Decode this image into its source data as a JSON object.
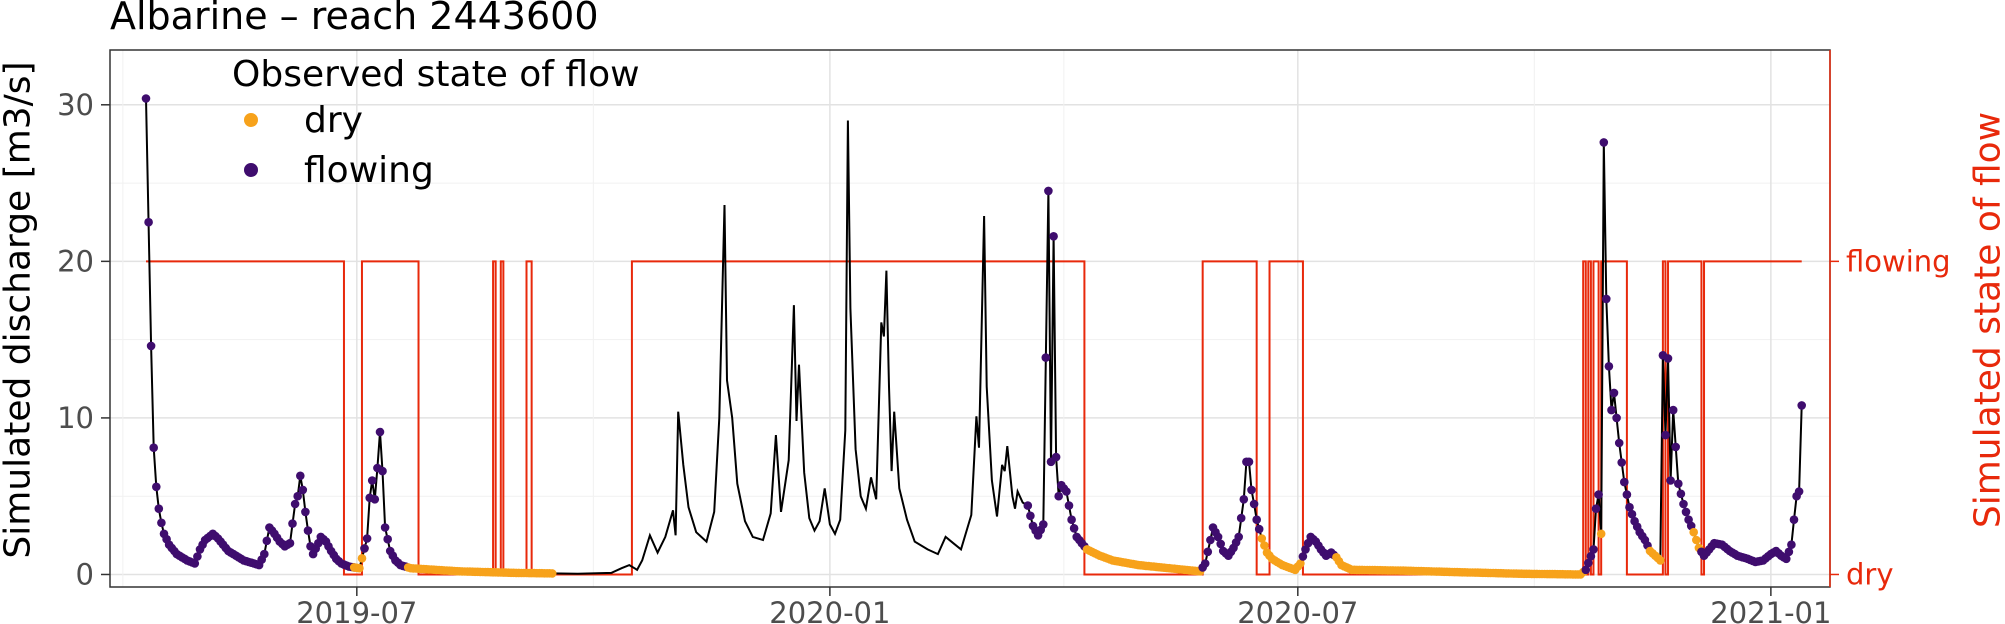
{
  "chart_data": {
    "type": "line",
    "title": "Albarine – reach 2443600",
    "ylabel": "Simulated discharge [m3/s]",
    "ylabel_right": "Simulated state of flow",
    "ylim": [
      -0.8,
      33.5
    ],
    "yticks": [
      0,
      10,
      20,
      30
    ],
    "xlim": [
      "2019-03-27",
      "2021-01-24"
    ],
    "xticks": [
      {
        "date": "2019-07-01",
        "label": "2019-07"
      },
      {
        "date": "2020-01-01",
        "label": "2020-01"
      },
      {
        "date": "2020-07-01",
        "label": "2020-07"
      },
      {
        "date": "2021-01-01",
        "label": "2021-01"
      }
    ],
    "right_axis_ticks": [
      {
        "label": "flowing",
        "value": 20
      },
      {
        "label": "dry",
        "value": 0
      }
    ],
    "grid": true,
    "legend": {
      "title": "Observed state of flow",
      "position": "top-left",
      "items": [
        {
          "label": "dry",
          "color": "#f7a21b"
        },
        {
          "label": "flowing",
          "color": "#3f0d6e"
        }
      ]
    },
    "colors": {
      "discharge_line": "#000000",
      "state_line": "#e8290b",
      "dry": "#f7a21b",
      "flowing": "#3f0d6e"
    },
    "discharge": [
      [
        "2019-04-10",
        30.4
      ],
      [
        "2019-04-12",
        14.6
      ],
      [
        "2019-04-13",
        8.1
      ],
      [
        "2019-04-14",
        5.6
      ],
      [
        "2019-04-15",
        4.2
      ],
      [
        "2019-04-16",
        3.3
      ],
      [
        "2019-04-17",
        2.6
      ],
      [
        "2019-04-19",
        1.9
      ],
      [
        "2019-04-22",
        1.3
      ],
      [
        "2019-04-26",
        0.9
      ],
      [
        "2019-04-29",
        0.7
      ],
      [
        "2019-05-01",
        1.6
      ],
      [
        "2019-05-03",
        2.2
      ],
      [
        "2019-05-06",
        2.6
      ],
      [
        "2019-05-08",
        2.3
      ],
      [
        "2019-05-12",
        1.5
      ],
      [
        "2019-05-18",
        0.9
      ],
      [
        "2019-05-24",
        0.6
      ],
      [
        "2019-05-26",
        1.3
      ],
      [
        "2019-05-28",
        3.0
      ],
      [
        "2019-05-30",
        2.6
      ],
      [
        "2019-06-01",
        2.1
      ],
      [
        "2019-06-03",
        1.8
      ],
      [
        "2019-06-05",
        2.0
      ],
      [
        "2019-06-07",
        4.5
      ],
      [
        "2019-06-08",
        5.0
      ],
      [
        "2019-06-09",
        6.3
      ],
      [
        "2019-06-10",
        5.4
      ],
      [
        "2019-06-11",
        4.0
      ],
      [
        "2019-06-12",
        2.8
      ],
      [
        "2019-06-13",
        1.8
      ],
      [
        "2019-06-14",
        1.3
      ],
      [
        "2019-06-16",
        2.0
      ],
      [
        "2019-06-17",
        2.4
      ],
      [
        "2019-06-19",
        2.1
      ],
      [
        "2019-06-21",
        1.5
      ],
      [
        "2019-06-23",
        1.0
      ],
      [
        "2019-06-25",
        0.7
      ],
      [
        "2019-06-28",
        0.5
      ],
      [
        "2019-07-02",
        0.4
      ],
      [
        "2019-07-05",
        2.3
      ],
      [
        "2019-07-06",
        4.9
      ],
      [
        "2019-07-07",
        6.0
      ],
      [
        "2019-07-08",
        4.8
      ],
      [
        "2019-07-09",
        6.8
      ],
      [
        "2019-07-10",
        9.1
      ],
      [
        "2019-07-11",
        6.6
      ],
      [
        "2019-07-12",
        3.0
      ],
      [
        "2019-07-14",
        1.5
      ],
      [
        "2019-07-16",
        0.9
      ],
      [
        "2019-07-18",
        0.6
      ],
      [
        "2019-07-22",
        0.4
      ],
      [
        "2019-08-10",
        0.2
      ],
      [
        "2019-09-01",
        0.1
      ],
      [
        "2019-09-25",
        0.05
      ],
      [
        "2019-10-08",
        0.1
      ],
      [
        "2019-10-12",
        0.4
      ],
      [
        "2019-10-15",
        0.6
      ],
      [
        "2019-10-18",
        0.3
      ],
      [
        "2019-10-20",
        0.9
      ],
      [
        "2019-10-23",
        2.5
      ],
      [
        "2019-10-26",
        1.4
      ],
      [
        "2019-10-29",
        2.4
      ],
      [
        "2019-11-01",
        4.1
      ],
      [
        "2019-11-02",
        2.5
      ],
      [
        "2019-11-03",
        10.4
      ],
      [
        "2019-11-05",
        7.0
      ],
      [
        "2019-11-07",
        4.3
      ],
      [
        "2019-11-10",
        2.7
      ],
      [
        "2019-11-14",
        2.1
      ],
      [
        "2019-11-17",
        4.0
      ],
      [
        "2019-11-19",
        10.0
      ],
      [
        "2019-11-21",
        23.6
      ],
      [
        "2019-11-22",
        12.4
      ],
      [
        "2019-11-24",
        10.0
      ],
      [
        "2019-11-26",
        5.8
      ],
      [
        "2019-11-29",
        3.4
      ],
      [
        "2019-12-02",
        2.4
      ],
      [
        "2019-12-06",
        2.2
      ],
      [
        "2019-12-09",
        3.9
      ],
      [
        "2019-12-11",
        8.9
      ],
      [
        "2019-12-13",
        4.0
      ],
      [
        "2019-12-16",
        7.3
      ],
      [
        "2019-12-18",
        17.2
      ],
      [
        "2019-12-19",
        9.8
      ],
      [
        "2019-12-20",
        13.4
      ],
      [
        "2019-12-22",
        6.5
      ],
      [
        "2019-12-24",
        3.6
      ],
      [
        "2019-12-26",
        2.8
      ],
      [
        "2019-12-28",
        3.4
      ],
      [
        "2019-12-30",
        5.5
      ],
      [
        "2020-01-01",
        3.2
      ],
      [
        "2020-01-03",
        2.6
      ],
      [
        "2020-01-05",
        3.5
      ],
      [
        "2020-01-07",
        9.2
      ],
      [
        "2020-01-08",
        29.0
      ],
      [
        "2020-01-09",
        17.0
      ],
      [
        "2020-01-11",
        8.0
      ],
      [
        "2020-01-13",
        5.0
      ],
      [
        "2020-01-15",
        4.2
      ],
      [
        "2020-01-17",
        6.2
      ],
      [
        "2020-01-19",
        4.8
      ],
      [
        "2020-01-21",
        16.1
      ],
      [
        "2020-01-22",
        15.2
      ],
      [
        "2020-01-23",
        19.4
      ],
      [
        "2020-01-24",
        12.0
      ],
      [
        "2020-01-25",
        6.6
      ],
      [
        "2020-01-26",
        10.4
      ],
      [
        "2020-01-28",
        5.5
      ],
      [
        "2020-01-31",
        3.5
      ],
      [
        "2020-02-03",
        2.1
      ],
      [
        "2020-02-08",
        1.6
      ],
      [
        "2020-02-12",
        1.3
      ],
      [
        "2020-02-15",
        2.4
      ],
      [
        "2020-02-18",
        2.0
      ],
      [
        "2020-02-21",
        1.6
      ],
      [
        "2020-02-25",
        3.8
      ],
      [
        "2020-02-27",
        10.1
      ],
      [
        "2020-02-28",
        8.1
      ],
      [
        "2020-03-01",
        22.9
      ],
      [
        "2020-03-02",
        12.0
      ],
      [
        "2020-03-04",
        6.0
      ],
      [
        "2020-03-06",
        3.7
      ],
      [
        "2020-03-08",
        7.0
      ],
      [
        "2020-03-09",
        6.6
      ],
      [
        "2020-03-10",
        8.2
      ],
      [
        "2020-03-12",
        5.0
      ],
      [
        "2020-03-13",
        4.2
      ],
      [
        "2020-03-14",
        5.3
      ],
      [
        "2020-03-16",
        4.6
      ],
      [
        "2020-03-18",
        4.4
      ],
      [
        "2020-03-20",
        3.1
      ],
      [
        "2020-03-22",
        2.5
      ],
      [
        "2020-03-24",
        3.2
      ],
      [
        "2020-03-26",
        24.5
      ],
      [
        "2020-03-27",
        7.2
      ],
      [
        "2020-03-28",
        21.6
      ],
      [
        "2020-03-29",
        7.5
      ],
      [
        "2020-03-30",
        5.0
      ],
      [
        "2020-03-31",
        5.7
      ],
      [
        "2020-04-02",
        5.3
      ],
      [
        "2020-04-04",
        3.5
      ],
      [
        "2020-04-06",
        2.4
      ],
      [
        "2020-04-10",
        1.6
      ],
      [
        "2020-04-15",
        1.2
      ],
      [
        "2020-04-20",
        0.9
      ],
      [
        "2020-04-30",
        0.6
      ],
      [
        "2020-05-15",
        0.35
      ],
      [
        "2020-05-24",
        0.2
      ],
      [
        "2020-05-26",
        0.7
      ],
      [
        "2020-05-28",
        2.2
      ],
      [
        "2020-05-29",
        3.0
      ],
      [
        "2020-05-31",
        2.4
      ],
      [
        "2020-06-02",
        1.5
      ],
      [
        "2020-06-04",
        1.2
      ],
      [
        "2020-06-06",
        1.7
      ],
      [
        "2020-06-08",
        2.4
      ],
      [
        "2020-06-10",
        4.8
      ],
      [
        "2020-06-11",
        7.2
      ],
      [
        "2020-06-12",
        7.2
      ],
      [
        "2020-06-13",
        5.4
      ],
      [
        "2020-06-14",
        4.5
      ],
      [
        "2020-06-15",
        3.5
      ],
      [
        "2020-06-17",
        2.3
      ],
      [
        "2020-06-19",
        1.4
      ],
      [
        "2020-06-21",
        1.0
      ],
      [
        "2020-06-25",
        0.6
      ],
      [
        "2020-06-30",
        0.3
      ],
      [
        "2020-07-02",
        0.7
      ],
      [
        "2020-07-04",
        1.6
      ],
      [
        "2020-07-06",
        2.4
      ],
      [
        "2020-07-08",
        2.1
      ],
      [
        "2020-07-10",
        1.6
      ],
      [
        "2020-07-12",
        1.2
      ],
      [
        "2020-07-14",
        1.4
      ],
      [
        "2020-07-16",
        1.1
      ],
      [
        "2020-07-18",
        0.6
      ],
      [
        "2020-07-22",
        0.3
      ],
      [
        "2020-08-10",
        0.25
      ],
      [
        "2020-09-01",
        0.15
      ],
      [
        "2020-09-25",
        0.05
      ],
      [
        "2020-10-19",
        0.0
      ],
      [
        "2020-10-21",
        0.3
      ],
      [
        "2020-10-24",
        1.6
      ],
      [
        "2020-10-25",
        4.2
      ],
      [
        "2020-10-26",
        5.1
      ],
      [
        "2020-10-27",
        2.6
      ],
      [
        "2020-10-28",
        27.6
      ],
      [
        "2020-10-29",
        17.6
      ],
      [
        "2020-10-30",
        13.3
      ],
      [
        "2020-10-31",
        10.5
      ],
      [
        "2020-11-01",
        11.6
      ],
      [
        "2020-11-03",
        8.4
      ],
      [
        "2020-11-05",
        5.9
      ],
      [
        "2020-11-07",
        4.3
      ],
      [
        "2020-11-09",
        3.4
      ],
      [
        "2020-11-11",
        2.7
      ],
      [
        "2020-11-13",
        2.2
      ],
      [
        "2020-11-15",
        1.5
      ],
      [
        "2020-11-17",
        1.2
      ],
      [
        "2020-11-19",
        0.9
      ],
      [
        "2020-11-20",
        14.0
      ],
      [
        "2020-11-21",
        8.9
      ],
      [
        "2020-11-22",
        13.8
      ],
      [
        "2020-11-23",
        6.0
      ],
      [
        "2020-11-24",
        10.5
      ],
      [
        "2020-11-26",
        5.8
      ],
      [
        "2020-11-28",
        4.5
      ],
      [
        "2020-11-30",
        3.5
      ],
      [
        "2020-12-02",
        2.7
      ],
      [
        "2020-12-04",
        1.7
      ],
      [
        "2020-12-06",
        1.2
      ],
      [
        "2020-12-08",
        1.6
      ],
      [
        "2020-12-10",
        2.0
      ],
      [
        "2020-12-13",
        1.9
      ],
      [
        "2020-12-16",
        1.5
      ],
      [
        "2020-12-19",
        1.2
      ],
      [
        "2020-12-23",
        1.0
      ],
      [
        "2020-12-26",
        0.8
      ],
      [
        "2020-12-29",
        0.9
      ],
      [
        "2021-01-01",
        1.3
      ],
      [
        "2021-01-03",
        1.5
      ],
      [
        "2021-01-05",
        1.2
      ],
      [
        "2021-01-07",
        1.0
      ],
      [
        "2021-01-09",
        1.9
      ],
      [
        "2021-01-10",
        3.5
      ],
      [
        "2021-01-11",
        5.0
      ],
      [
        "2021-01-12",
        5.3
      ],
      [
        "2021-01-13",
        10.8
      ]
    ],
    "observations": [
      {
        "state": "flowing",
        "start": "2019-04-10",
        "end": "2019-06-30",
        "interval_days": 1
      },
      {
        "state": "dry",
        "start": "2019-06-30",
        "end": "2019-07-04",
        "interval_days": 1
      },
      {
        "state": "flowing",
        "start": "2019-07-04",
        "end": "2019-07-20",
        "interval_days": 1
      },
      {
        "state": "dry",
        "start": "2019-07-21",
        "end": "2019-09-15",
        "interval_days": 1
      },
      {
        "state": "flowing",
        "start": "2020-03-18",
        "end": "2020-04-09",
        "interval_days": 1
      },
      {
        "state": "dry",
        "start": "2020-04-10",
        "end": "2020-05-24",
        "interval_days": 1
      },
      {
        "state": "flowing",
        "start": "2020-05-25",
        "end": "2020-06-16",
        "interval_days": 1
      },
      {
        "state": "dry",
        "start": "2020-06-17",
        "end": "2020-07-02",
        "interval_days": 1
      },
      {
        "state": "flowing",
        "start": "2020-07-03",
        "end": "2020-07-15",
        "interval_days": 1
      },
      {
        "state": "dry",
        "start": "2020-07-16",
        "end": "2020-10-20",
        "interval_days": 1
      },
      {
        "state": "flowing",
        "start": "2020-10-21",
        "end": "2020-10-26",
        "interval_days": 1
      },
      {
        "state": "dry",
        "start": "2020-10-27",
        "end": "2020-10-27",
        "interval_days": 1
      },
      {
        "state": "flowing",
        "start": "2020-10-28",
        "end": "2020-11-14",
        "interval_days": 1
      },
      {
        "state": "dry",
        "start": "2020-11-15",
        "end": "2020-11-19",
        "interval_days": 1
      },
      {
        "state": "flowing",
        "start": "2020-11-20",
        "end": "2020-12-01",
        "interval_days": 1
      },
      {
        "state": "dry",
        "start": "2020-12-02",
        "end": "2020-12-04",
        "interval_days": 1
      },
      {
        "state": "flowing",
        "start": "2020-12-05",
        "end": "2021-01-13",
        "interval_days": 1
      }
    ],
    "simulated_state": [
      {
        "state": "flowing",
        "start": "2019-04-10"
      },
      {
        "state": "dry",
        "start": "2019-06-26"
      },
      {
        "state": "flowing",
        "start": "2019-07-03"
      },
      {
        "state": "dry",
        "start": "2019-07-25"
      },
      {
        "state": "flowing",
        "start": "2019-08-23"
      },
      {
        "state": "dry",
        "start": "2019-08-24"
      },
      {
        "state": "flowing",
        "start": "2019-08-26"
      },
      {
        "state": "dry",
        "start": "2019-08-27"
      },
      {
        "state": "flowing",
        "start": "2019-09-05"
      },
      {
        "state": "dry",
        "start": "2019-09-07"
      },
      {
        "state": "flowing",
        "start": "2019-10-16"
      },
      {
        "state": "dry",
        "start": "2020-04-09"
      },
      {
        "state": "flowing",
        "start": "2020-05-25"
      },
      {
        "state": "dry",
        "start": "2020-06-15"
      },
      {
        "state": "flowing",
        "start": "2020-06-20"
      },
      {
        "state": "dry",
        "start": "2020-07-03"
      },
      {
        "state": "flowing",
        "start": "2020-10-20"
      },
      {
        "state": "dry",
        "start": "2020-10-21"
      },
      {
        "state": "flowing",
        "start": "2020-10-22"
      },
      {
        "state": "dry",
        "start": "2020-10-23"
      },
      {
        "state": "flowing",
        "start": "2020-10-24"
      },
      {
        "state": "dry",
        "start": "2020-10-26"
      },
      {
        "state": "flowing",
        "start": "2020-10-27"
      },
      {
        "state": "dry",
        "start": "2020-11-06"
      },
      {
        "state": "flowing",
        "start": "2020-11-20"
      },
      {
        "state": "dry",
        "start": "2020-11-21"
      },
      {
        "state": "flowing",
        "start": "2020-11-22"
      },
      {
        "state": "dry",
        "start": "2020-12-05"
      },
      {
        "state": "flowing",
        "start": "2020-12-06"
      },
      {
        "state": "flowing",
        "start": "2021-01-13"
      }
    ]
  }
}
